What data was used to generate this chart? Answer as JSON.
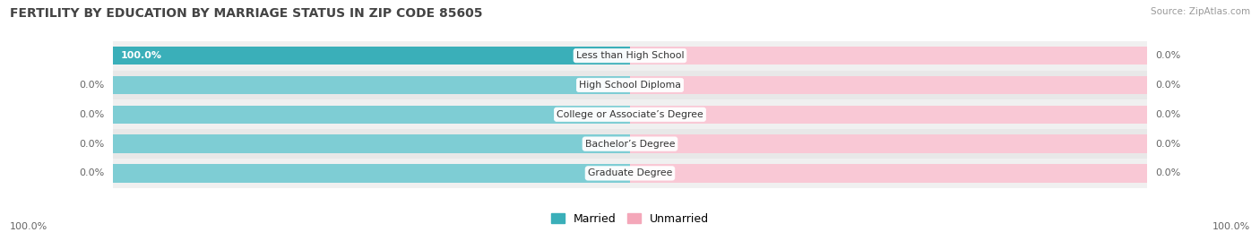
{
  "title": "FERTILITY BY EDUCATION BY MARRIAGE STATUS IN ZIP CODE 85605",
  "source": "Source: ZipAtlas.com",
  "categories": [
    "Less than High School",
    "High School Diploma",
    "College or Associate’s Degree",
    "Bachelor’s Degree",
    "Graduate Degree"
  ],
  "married_values": [
    100.0,
    0.0,
    0.0,
    0.0,
    0.0
  ],
  "unmarried_values": [
    0.0,
    0.0,
    0.0,
    0.0,
    0.0
  ],
  "married_color": "#3AAFB9",
  "unmarried_color": "#F4A7B9",
  "married_light_color": "#7ECDD4",
  "unmarried_light_color": "#F9C8D5",
  "text_color": "#666666",
  "label_color": "#333333",
  "title_color": "#444444",
  "legend_married": "Married",
  "legend_unmarried": "Unmarried",
  "bottom_left_label": "100.0%",
  "bottom_right_label": "100.0%",
  "figure_width": 14.06,
  "figure_height": 2.69,
  "dpi": 100
}
